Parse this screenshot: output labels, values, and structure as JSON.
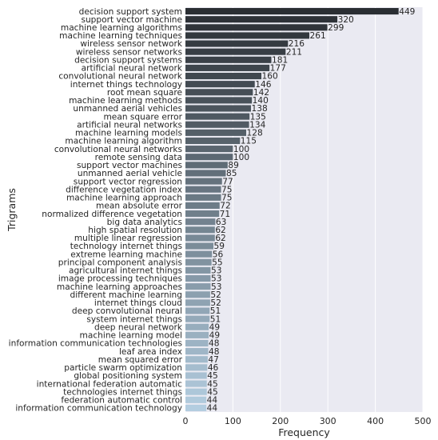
{
  "chart_data": {
    "type": "bar",
    "orientation": "horizontal",
    "xlabel": "Frequency",
    "ylabel": "Trigrams",
    "xlim": [
      0,
      500
    ],
    "xticks": [
      0,
      100,
      200,
      300,
      400,
      500
    ],
    "grid": true,
    "bar_color_gradient": [
      "#2a2e33",
      "#b3cde0"
    ],
    "background": "#eaeaf2",
    "categories": [
      "decision support system",
      "support vector machine",
      "machine learning algorithms",
      "machine learning techniques",
      "wireless sensor network",
      "wireless sensor networks",
      "decision support systems",
      "artificial neural network",
      "convolutional neural network",
      "internet things technology",
      "root mean square",
      "machine learning methods",
      "unmanned aerial vehicles",
      "mean square error",
      "artificial neural networks",
      "machine learning models",
      "machine learning algorithm",
      "convolutional neural networks",
      "remote sensing data",
      "support vector machines",
      "unmanned aerial vehicle",
      "support vector regression",
      "difference vegetation index",
      "machine learning approach",
      "mean absolute error",
      "normalized difference vegetation",
      "big data analytics",
      "high spatial resolution",
      "multiple linear regression",
      "technology internet things",
      "extreme learning machine",
      "principal component analysis",
      "agricultural internet things",
      "image processing techniques",
      "machine learning approaches",
      "different machine learning",
      "internet things cloud",
      "deep convolutional neural",
      "system internet things",
      "deep neural network",
      "machine learning model",
      "information communication technologies",
      "leaf area index",
      "mean squared error",
      "particle swarm optimization",
      "global positioning system",
      "international federation automatic",
      "technologies internet things",
      "federation automatic control",
      "information communication technology"
    ],
    "values": [
      449,
      320,
      299,
      261,
      216,
      211,
      181,
      177,
      160,
      146,
      142,
      140,
      138,
      135,
      134,
      128,
      115,
      100,
      100,
      89,
      85,
      77,
      75,
      75,
      72,
      71,
      63,
      62,
      62,
      59,
      56,
      55,
      53,
      53,
      53,
      52,
      52,
      51,
      51,
      49,
      49,
      48,
      48,
      47,
      46,
      45,
      45,
      45,
      44,
      44
    ]
  }
}
